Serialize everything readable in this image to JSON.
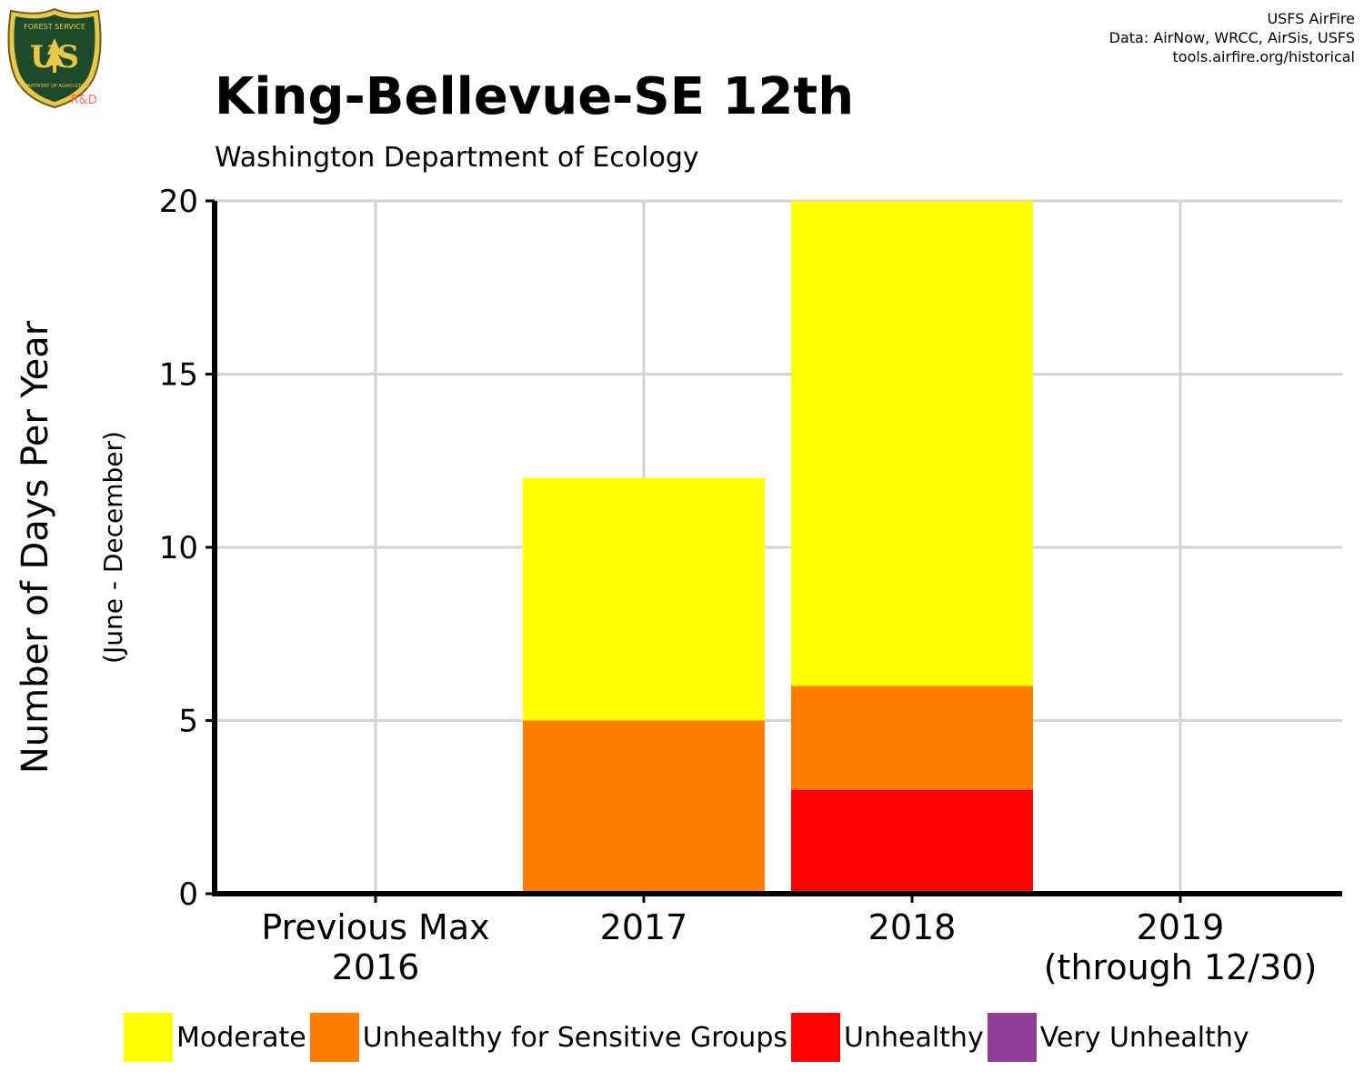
{
  "header": {
    "title": "King-Bellevue-SE 12th",
    "subtitle": "Washington Department of Ecology",
    "credits": [
      "USFS AirFire",
      "Data: AirNow, WRCC, AirSis, USFS",
      "tools.airfire.org/historical"
    ]
  },
  "logo": {
    "icon": "usfs-shield-icon",
    "top_text": "FOREST SERVICE",
    "letters": "US",
    "bottom_text": "DEPARTMENT OF AGRICULTURE",
    "badge": "R&D"
  },
  "colors": {
    "moderate": "#ffff00",
    "usg": "#ff7e00",
    "unhealthy": "#ff0000",
    "very_unhealthy": "#8f3f97"
  },
  "chart_data": {
    "type": "bar",
    "stacked": true,
    "title": "King-Bellevue-SE 12th",
    "subtitle": "Washington Department of Ecology",
    "ylabel": "Number of Days Per Year",
    "ylabel_sub": "(June - December)",
    "ylim": [
      0,
      20
    ],
    "yticks": [
      0,
      5,
      10,
      15,
      20
    ],
    "categories": [
      [
        "Previous Max",
        "2016"
      ],
      [
        "2017"
      ],
      [
        "2018"
      ],
      [
        "2019",
        "(through 12/30)"
      ]
    ],
    "series": [
      {
        "name": "Unhealthy",
        "color": "#ff0000",
        "values": [
          0,
          0,
          3,
          0
        ]
      },
      {
        "name": "Unhealthy for Sensitive Groups",
        "color": "#ff7e00",
        "values": [
          0,
          5,
          3,
          0
        ]
      },
      {
        "name": "Moderate",
        "color": "#ffff00",
        "values": [
          0,
          7,
          14,
          0
        ]
      },
      {
        "name": "Very Unhealthy",
        "color": "#8f3f97",
        "values": [
          0,
          0,
          0,
          0
        ]
      }
    ],
    "legend": [
      {
        "name": "Moderate",
        "color": "#ffff00"
      },
      {
        "name": "Unhealthy for Sensitive Groups",
        "color": "#ff7e00"
      },
      {
        "name": "Unhealthy",
        "color": "#ff0000"
      },
      {
        "name": "Very Unhealthy",
        "color": "#8f3f97"
      }
    ],
    "legend_position": "bottom",
    "grid": true
  }
}
